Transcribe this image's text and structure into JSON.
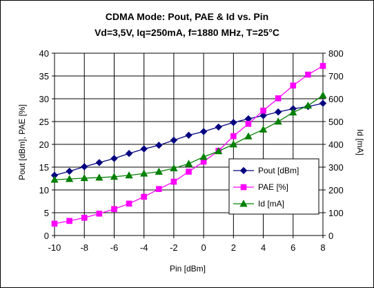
{
  "chart_data": {
    "type": "line",
    "title": "CDMA Mode: Pout, PAE & Id vs. Pin",
    "subtitle": "Vd=3,5V, Iq=250mA, f=1880 MHz, T=25°C",
    "xlabel": "Pin [dBm]",
    "ylabel_left": "Pout [dBm], PAE [%]",
    "ylabel_right": "Id [mA]",
    "xlim": [
      -10,
      8
    ],
    "ylim_left": [
      0,
      40
    ],
    "ylim_right": [
      0,
      800
    ],
    "x_ticks": [
      "-10",
      "-8",
      "-6",
      "-4",
      "-2",
      "0",
      "2",
      "4",
      "6",
      "8"
    ],
    "y_left_ticks": [
      "0",
      "5",
      "10",
      "15",
      "20",
      "25",
      "30",
      "35",
      "40"
    ],
    "y_right_ticks": [
      "0",
      "100",
      "200",
      "300",
      "400",
      "500",
      "600",
      "700",
      "800"
    ],
    "grid": true,
    "legend_position": "center-right",
    "x": [
      -10,
      -9,
      -8,
      -7,
      -6,
      -5,
      -4,
      -3,
      -2,
      -1,
      0,
      1,
      2,
      3,
      4,
      5,
      6,
      7,
      8
    ],
    "series": [
      {
        "name": "Pout [dBm]",
        "axis": "left",
        "marker": "diamond",
        "color": "#000080",
        "values": [
          13.2,
          14.1,
          15.1,
          16.0,
          16.9,
          18.0,
          19.0,
          19.8,
          20.9,
          22.0,
          22.8,
          23.8,
          24.8,
          25.6,
          26.3,
          27.1,
          27.8,
          28.3,
          29.0
        ]
      },
      {
        "name": "PAE [%]",
        "axis": "left",
        "marker": "square",
        "color": "#ff00ff",
        "values": [
          2.6,
          3.2,
          3.9,
          4.8,
          5.8,
          7.0,
          8.5,
          10.2,
          11.8,
          14.0,
          16.2,
          18.6,
          21.8,
          24.5,
          27.4,
          30.1,
          32.9,
          35.3,
          37.2
        ]
      },
      {
        "name": "Id [mA]",
        "axis": "right",
        "marker": "triangle",
        "color": "#008000",
        "values": [
          245,
          248,
          252,
          254,
          258,
          264,
          272,
          280,
          295,
          315,
          345,
          370,
          400,
          435,
          465,
          500,
          540,
          570,
          615
        ]
      }
    ]
  }
}
